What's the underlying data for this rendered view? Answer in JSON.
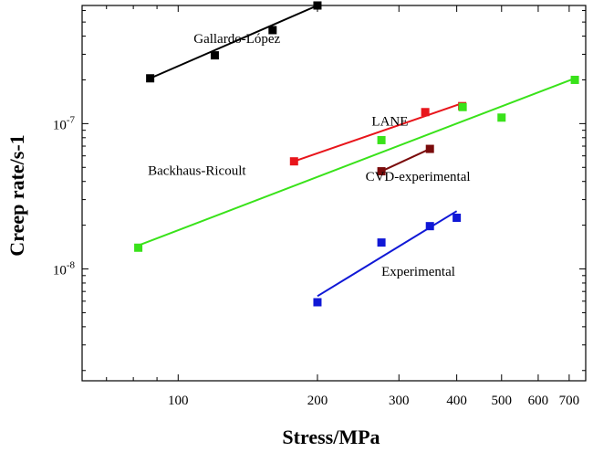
{
  "chart_data": {
    "type": "scatter",
    "title": "",
    "xlabel": "Stress/MPa",
    "ylabel": "Creep rate/s-1",
    "x_scale": "log",
    "y_scale": "log",
    "xlim": [
      62,
      760
    ],
    "ylim": [
      1.7e-09,
      6.5e-07
    ],
    "grid": false,
    "x_ticks": [
      {
        "value": 100,
        "label": "100"
      },
      {
        "value": 200,
        "label": "200"
      },
      {
        "value": 300,
        "label": "300"
      },
      {
        "value": 400,
        "label": "400"
      },
      {
        "value": 500,
        "label": "500"
      },
      {
        "value": 600,
        "label": "600"
      },
      {
        "value": 700,
        "label": "700"
      }
    ],
    "x_minor_ticks": [
      70,
      80,
      90
    ],
    "y_ticks": [
      {
        "value": 1e-08,
        "base": "10",
        "exp": "-8"
      },
      {
        "value": 1e-07,
        "base": "10",
        "exp": "-7"
      }
    ],
    "y_minor_ticks": [
      2e-09,
      3e-09,
      4e-09,
      5e-09,
      6e-09,
      7e-09,
      8e-09,
      9e-09,
      2e-08,
      3e-08,
      4e-08,
      5e-08,
      6e-08,
      7e-08,
      8e-08,
      9e-08,
      2e-07,
      3e-07,
      4e-07,
      5e-07,
      6e-07
    ],
    "series": [
      {
        "name": "Gallardo-López",
        "color": "#000000",
        "points": [
          [
            87,
            2.05e-07
          ],
          [
            120,
            2.95e-07
          ],
          [
            160,
            4.4e-07
          ],
          [
            200,
            6.5e-07
          ]
        ],
        "fit": [
          [
            87,
            2.05e-07
          ],
          [
            200,
            6.5e-07
          ]
        ]
      },
      {
        "name": "LANE",
        "color": "#e8151b",
        "points": [
          [
            178,
            5.5e-08
          ],
          [
            342,
            1.2e-07
          ],
          [
            411,
            1.32e-07
          ]
        ],
        "fit": [
          [
            178,
            5.5e-08
          ],
          [
            411,
            1.38e-07
          ]
        ]
      },
      {
        "name": "CVD-experimental",
        "color": "#7a0b0b",
        "points": [
          [
            275,
            4.7e-08
          ],
          [
            350,
            6.7e-08
          ]
        ],
        "fit": [
          [
            275,
            4.7e-08
          ],
          [
            350,
            6.7e-08
          ]
        ]
      },
      {
        "name": "Backhaus-Ricoult",
        "color": "#39e21a",
        "points": [
          [
            82,
            1.4e-08
          ],
          [
            275,
            7.7e-08
          ],
          [
            412,
            1.3e-07
          ],
          [
            500,
            1.1e-07
          ],
          [
            720,
            2e-07
          ]
        ],
        "fit": [
          [
            82,
            1.45e-08
          ],
          [
            720,
            2.05e-07
          ]
        ]
      },
      {
        "name": "Experimental",
        "color": "#1018d6",
        "points": [
          [
            200,
            5.9e-09
          ],
          [
            275,
            1.52e-08
          ],
          [
            350,
            1.97e-08
          ],
          [
            400,
            2.25e-08
          ]
        ],
        "fit": [
          [
            200,
            6.5e-09
          ],
          [
            400,
            2.5e-08
          ]
        ]
      }
    ]
  }
}
